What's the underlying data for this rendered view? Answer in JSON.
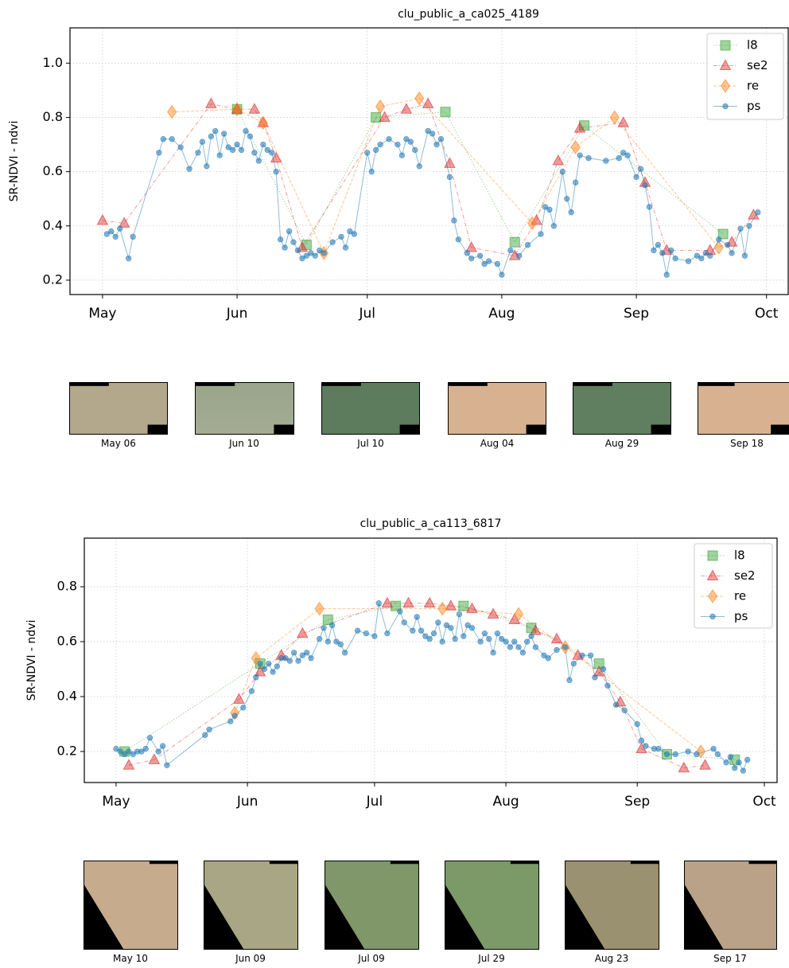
{
  "chart_data": [
    {
      "type": "line",
      "title": "clu_public_a_ca025_4189",
      "ylabel": "SR-NDVI - ndvi",
      "xlim": [
        -7.5,
        158
      ],
      "xticks": [
        {
          "value": 0,
          "label": "May"
        },
        {
          "value": 31,
          "label": "Jun"
        },
        {
          "value": 61,
          "label": "Jul"
        },
        {
          "value": 92,
          "label": "Aug"
        },
        {
          "value": 123,
          "label": "Sep"
        },
        {
          "value": 153,
          "label": "Oct"
        }
      ],
      "ylim": [
        0.147,
        1.13
      ],
      "yticks": [
        0.2,
        0.4,
        0.6,
        0.8,
        {
          "value": 1,
          "label": "1.0"
        }
      ],
      "grid": true,
      "legend": "upper right",
      "series": [
        {
          "name": "l8",
          "color": "#2ca02c",
          "marker": "square",
          "x": [
            31,
            47,
            63,
            79,
            95,
            111,
            143
          ],
          "values": [
            0.83,
            0.33,
            0.8,
            0.82,
            0.34,
            0.77,
            0.37
          ]
        },
        {
          "name": "se2",
          "color": "#d62728",
          "marker": "triangle",
          "x": [
            0,
            5,
            25,
            31,
            35,
            37,
            40,
            46,
            65,
            70,
            75,
            80,
            85,
            95,
            100,
            105,
            110,
            120,
            125,
            130,
            140,
            145,
            150
          ],
          "values": [
            0.42,
            0.41,
            0.85,
            0.83,
            0.83,
            0.78,
            0.65,
            0.32,
            0.8,
            0.83,
            0.85,
            0.63,
            0.32,
            0.29,
            0.42,
            0.64,
            0.76,
            0.78,
            0.56,
            0.31,
            0.31,
            0.34,
            0.44
          ]
        },
        {
          "name": "re",
          "color": "#ff7f0e",
          "marker": "diamond",
          "x": [
            16,
            31,
            37,
            51,
            64,
            73,
            99,
            109,
            118,
            142
          ],
          "values": [
            0.82,
            0.83,
            0.78,
            0.3,
            0.84,
            0.87,
            0.41,
            0.69,
            0.8,
            0.32
          ]
        },
        {
          "name": "ps",
          "color": "#1f77b4",
          "marker": "circle",
          "x": [
            1,
            2,
            3,
            4,
            6,
            7,
            13,
            14,
            16,
            18,
            20,
            22,
            23,
            24,
            25,
            26,
            27,
            28,
            29,
            30,
            31,
            32,
            33,
            34,
            35,
            36,
            37,
            38,
            39,
            40,
            41,
            42,
            43,
            44,
            45,
            46,
            47,
            48,
            49,
            50,
            51,
            53,
            55,
            56,
            57,
            58,
            61,
            62,
            63,
            64,
            66,
            68,
            69,
            70,
            71,
            72,
            73,
            75,
            76,
            77,
            78,
            80,
            81,
            82,
            84,
            85,
            87,
            88,
            89,
            91,
            92,
            94,
            96,
            98,
            101,
            102,
            103,
            104,
            106,
            107,
            108,
            109,
            110,
            112,
            116,
            119,
            120,
            121,
            123,
            124,
            125,
            126,
            127,
            128,
            129,
            130,
            131,
            132,
            135,
            137,
            138,
            139,
            140,
            142,
            144,
            145,
            147,
            148,
            149,
            151
          ],
          "values": [
            0.37,
            0.38,
            0.36,
            0.39,
            0.28,
            0.36,
            0.67,
            0.72,
            0.72,
            0.69,
            0.61,
            0.67,
            0.71,
            0.62,
            0.73,
            0.75,
            0.66,
            0.74,
            0.69,
            0.68,
            0.7,
            0.68,
            0.75,
            0.73,
            0.67,
            0.64,
            0.7,
            0.68,
            0.67,
            0.6,
            0.35,
            0.32,
            0.38,
            0.34,
            0.31,
            0.28,
            0.29,
            0.3,
            0.29,
            0.31,
            0.3,
            0.34,
            0.36,
            0.32,
            0.38,
            0.37,
            0.67,
            0.6,
            0.68,
            0.7,
            0.72,
            0.7,
            0.66,
            0.72,
            0.71,
            0.68,
            0.62,
            0.75,
            0.74,
            0.7,
            0.72,
            0.58,
            0.42,
            0.35,
            0.3,
            0.28,
            0.29,
            0.26,
            0.27,
            0.26,
            0.22,
            0.31,
            0.29,
            0.33,
            0.37,
            0.47,
            0.46,
            0.4,
            0.6,
            0.5,
            0.45,
            0.56,
            0.66,
            0.65,
            0.64,
            0.65,
            0.67,
            0.66,
            0.58,
            0.61,
            0.55,
            0.47,
            0.31,
            0.33,
            0.3,
            0.22,
            0.31,
            0.28,
            0.27,
            0.29,
            0.28,
            0.3,
            0.29,
            0.35,
            0.33,
            0.3,
            0.39,
            0.29,
            0.4,
            0.45
          ]
        }
      ],
      "thumbnails": [
        "May 06",
        "Jun 10",
        "Jul 10",
        "Aug 04",
        "Aug 29",
        "Sep 18"
      ]
    },
    {
      "type": "line",
      "title": "clu_public_a_ca113_6817",
      "ylabel": "SR-NDVI - ndvi",
      "xlim": [
        -7.5,
        156
      ],
      "xticks": [
        {
          "value": 0,
          "label": "May"
        },
        {
          "value": 31,
          "label": "Jun"
        },
        {
          "value": 61,
          "label": "Jul"
        },
        {
          "value": 92,
          "label": "Aug"
        },
        {
          "value": 123,
          "label": "Sep"
        },
        {
          "value": 153,
          "label": "Oct"
        }
      ],
      "ylim": [
        0.087,
        0.977
      ],
      "yticks": [
        0.2,
        0.4,
        0.6,
        0.8
      ],
      "grid": true,
      "legend": "upper right",
      "series": [
        {
          "name": "l8",
          "color": "#2ca02c",
          "marker": "square",
          "x": [
            2,
            34,
            50,
            66,
            82,
            98,
            114,
            130,
            146
          ],
          "values": [
            0.2,
            0.52,
            0.68,
            0.73,
            0.73,
            0.65,
            0.52,
            0.19,
            0.17
          ]
        },
        {
          "name": "se2",
          "color": "#d62728",
          "marker": "triangle",
          "x": [
            3,
            9,
            29,
            34,
            39,
            44,
            64,
            69,
            74,
            79,
            84,
            89,
            94,
            99,
            104,
            109,
            114,
            119,
            124,
            134,
            139
          ],
          "values": [
            0.15,
            0.17,
            0.39,
            0.49,
            0.55,
            0.63,
            0.74,
            0.74,
            0.74,
            0.73,
            0.72,
            0.7,
            0.68,
            0.64,
            0.61,
            0.55,
            0.49,
            0.38,
            0.21,
            0.14,
            0.15
          ]
        },
        {
          "name": "re",
          "color": "#ff7f0e",
          "marker": "diamond",
          "x": [
            28,
            33,
            48,
            77,
            95,
            106,
            138
          ],
          "values": [
            0.34,
            0.54,
            0.72,
            0.72,
            0.7,
            0.58,
            0.2
          ]
        },
        {
          "name": "ps",
          "color": "#1f77b4",
          "marker": "circle",
          "x": [
            0,
            1,
            2,
            3,
            4,
            5,
            6,
            7,
            8,
            10,
            11,
            12,
            21,
            22,
            27,
            28,
            30,
            32,
            33,
            34,
            35,
            36,
            37,
            38,
            39,
            40,
            41,
            42,
            43,
            44,
            45,
            46,
            48,
            49,
            50,
            51,
            52,
            53,
            54,
            57,
            59,
            61,
            62,
            64,
            67,
            68,
            70,
            71,
            72,
            73,
            74,
            75,
            76,
            77,
            78,
            79,
            80,
            81,
            82,
            83,
            84,
            86,
            87,
            88,
            89,
            90,
            91,
            92,
            93,
            94,
            95,
            96,
            97,
            98,
            99,
            101,
            102,
            104,
            106,
            107,
            108,
            110,
            112,
            113,
            115,
            116,
            118,
            120,
            123,
            124,
            125,
            127,
            128,
            130,
            132,
            135,
            137,
            141,
            142,
            144,
            145,
            146,
            147,
            148,
            149
          ],
          "values": [
            0.21,
            0.2,
            0.19,
            0.2,
            0.19,
            0.2,
            0.2,
            0.21,
            0.25,
            0.2,
            0.22,
            0.15,
            0.26,
            0.28,
            0.31,
            0.33,
            0.36,
            0.42,
            0.47,
            0.52,
            0.5,
            0.52,
            0.49,
            0.51,
            0.54,
            0.54,
            0.53,
            0.56,
            0.53,
            0.55,
            0.56,
            0.54,
            0.61,
            0.65,
            0.6,
            0.66,
            0.6,
            0.59,
            0.56,
            0.64,
            0.63,
            0.62,
            0.74,
            0.63,
            0.71,
            0.67,
            0.64,
            0.69,
            0.64,
            0.62,
            0.61,
            0.63,
            0.67,
            0.6,
            0.66,
            0.65,
            0.61,
            0.7,
            0.62,
            0.66,
            0.65,
            0.6,
            0.63,
            0.61,
            0.56,
            0.63,
            0.61,
            0.6,
            0.58,
            0.6,
            0.58,
            0.56,
            0.6,
            0.62,
            0.58,
            0.55,
            0.54,
            0.57,
            0.58,
            0.46,
            0.52,
            0.55,
            0.55,
            0.47,
            0.5,
            0.44,
            0.37,
            0.35,
            0.3,
            0.24,
            0.22,
            0.21,
            0.21,
            0.19,
            0.19,
            0.2,
            0.19,
            0.21,
            0.19,
            0.16,
            0.18,
            0.14,
            0.16,
            0.13,
            0.17
          ]
        }
      ],
      "thumbnails": [
        "May 10",
        "Jun 09",
        "Jul 09",
        "Jul 29",
        "Aug 23",
        "Sep 17"
      ]
    }
  ]
}
